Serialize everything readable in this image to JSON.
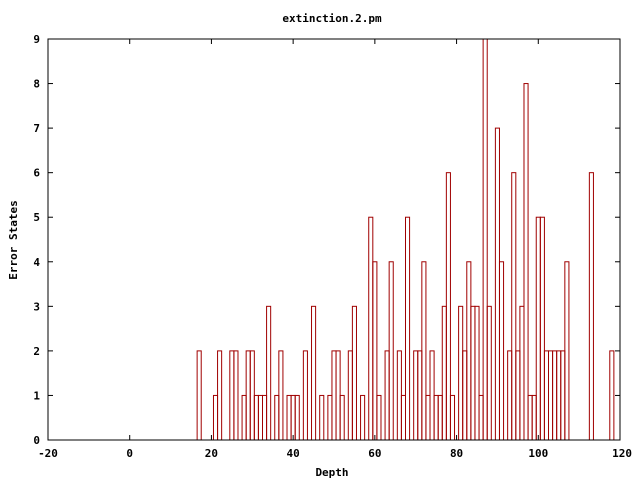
{
  "chart_data": {
    "type": "bar",
    "title": "extinction.2.pm",
    "xlabel": "Depth",
    "ylabel": "Error States",
    "xlim": [
      -20,
      120
    ],
    "ylim": [
      0,
      9
    ],
    "xticks": [
      -20,
      0,
      20,
      40,
      60,
      80,
      100,
      120
    ],
    "yticks": [
      0,
      1,
      2,
      3,
      4,
      5,
      6,
      7,
      8,
      9
    ],
    "grid": false,
    "legend": "none",
    "color": "#a00000",
    "x": [
      17,
      18,
      19,
      20,
      21,
      22,
      23,
      24,
      25,
      26,
      27,
      28,
      29,
      30,
      31,
      32,
      33,
      34,
      35,
      36,
      37,
      38,
      39,
      40,
      41,
      42,
      43,
      44,
      45,
      46,
      47,
      48,
      49,
      50,
      51,
      52,
      53,
      54,
      55,
      56,
      57,
      58,
      59,
      60,
      61,
      62,
      63,
      64,
      65,
      66,
      67,
      68,
      69,
      70,
      71,
      72,
      73,
      74,
      75,
      76,
      77,
      78,
      79,
      80,
      81,
      82,
      83,
      84,
      85,
      86,
      87,
      88,
      89,
      90,
      91,
      92,
      93,
      94,
      95,
      96,
      97,
      98,
      99,
      100,
      101,
      102,
      103,
      104,
      105,
      106,
      107,
      108,
      109,
      110,
      111,
      112,
      113,
      114,
      115,
      116,
      117,
      118
    ],
    "values": [
      2,
      0,
      0,
      0,
      1,
      2,
      0,
      0,
      2,
      2,
      0,
      1,
      2,
      2,
      1,
      1,
      1,
      3,
      0,
      1,
      2,
      0,
      1,
      1,
      1,
      0,
      2,
      0,
      3,
      0,
      1,
      0,
      1,
      2,
      2,
      1,
      0,
      2,
      3,
      0,
      1,
      0,
      5,
      4,
      1,
      0,
      2,
      4,
      0,
      2,
      1,
      5,
      0,
      2,
      2,
      4,
      1,
      2,
      1,
      1,
      3,
      6,
      1,
      0,
      3,
      2,
      4,
      3,
      3,
      1,
      9,
      3,
      0,
      7,
      4,
      0,
      2,
      6,
      2,
      3,
      8,
      1,
      1,
      5,
      5,
      2,
      2,
      2,
      2,
      2,
      4,
      0,
      0,
      0,
      0,
      0,
      6,
      0,
      0,
      0,
      0,
      2
    ]
  }
}
